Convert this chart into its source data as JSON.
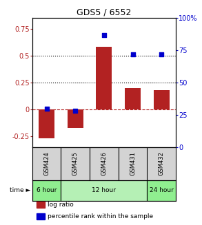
{
  "title": "GDS5 / 6552",
  "samples": [
    "GSM424",
    "GSM425",
    "GSM426",
    "GSM431",
    "GSM432"
  ],
  "log_ratio": [
    -0.27,
    -0.17,
    0.58,
    0.2,
    0.18
  ],
  "percentile_rank": [
    30,
    28,
    87,
    72,
    72
  ],
  "bar_color": "#b22222",
  "dot_color": "#0000cc",
  "ylim_left": [
    -0.35,
    0.85
  ],
  "ylim_right": [
    0,
    100
  ],
  "yticks_left": [
    -0.25,
    0.0,
    0.25,
    0.5,
    0.75
  ],
  "yticks_right": [
    0,
    25,
    50,
    75,
    100
  ],
  "ytick_labels_left": [
    "-0.25",
    "0",
    "0.25",
    "0.5",
    "0.75"
  ],
  "ytick_labels_right": [
    "0",
    "25",
    "50",
    "75",
    "100%"
  ],
  "hlines": [
    0.25,
    0.5
  ],
  "zero_line": 0.0,
  "bar_width": 0.55,
  "dot_size": 25,
  "background_plot": "#ffffff",
  "background_sample_row": "#d3d3d3",
  "legend_items": [
    {
      "label": "log ratio",
      "color": "#b22222"
    },
    {
      "label": "percentile rank within the sample",
      "color": "#0000cc"
    }
  ],
  "time_blocks": [
    {
      "xmin": -0.5,
      "xmax": 0.5,
      "label": "6 hour",
      "color": "#90ee90"
    },
    {
      "xmin": 0.5,
      "xmax": 3.5,
      "label": "12 hour",
      "color": "#b5f0b5"
    },
    {
      "xmin": 3.5,
      "xmax": 4.5,
      "label": "24 hour",
      "color": "#90ee90"
    }
  ]
}
